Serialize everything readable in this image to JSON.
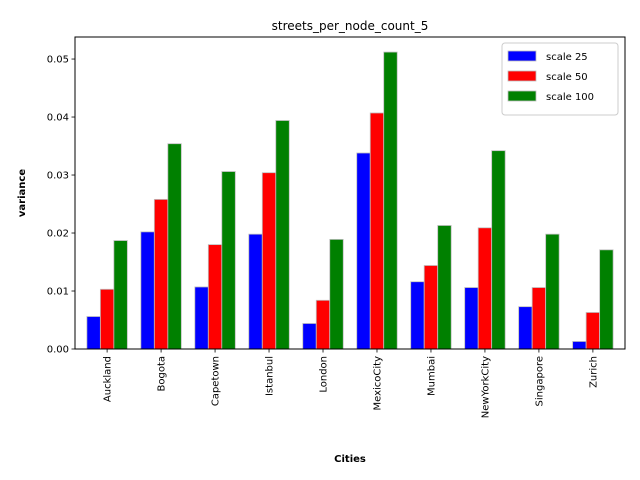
{
  "chart_data": {
    "type": "bar",
    "title": "streets_per_node_count_5",
    "xlabel": "Cities",
    "ylabel": "variance",
    "categories": [
      "Auckland",
      "Bogota",
      "Capetown",
      "Istanbul",
      "London",
      "MexicoCity",
      "Mumbai",
      "NewYorkCity",
      "Singapore",
      "Zurich"
    ],
    "series": [
      {
        "name": "scale 25",
        "color": "#0000ff",
        "values": [
          0.0056,
          0.0202,
          0.0107,
          0.0198,
          0.0044,
          0.0338,
          0.0116,
          0.0106,
          0.0073,
          0.0013
        ]
      },
      {
        "name": "scale 50",
        "color": "#ff0000",
        "values": [
          0.0103,
          0.0258,
          0.018,
          0.0304,
          0.0084,
          0.0407,
          0.0144,
          0.0209,
          0.0106,
          0.0063
        ]
      },
      {
        "name": "scale 100",
        "color": "#008000",
        "values": [
          0.0187,
          0.0354,
          0.0306,
          0.0394,
          0.0189,
          0.0512,
          0.0213,
          0.0342,
          0.0198,
          0.0171
        ]
      }
    ],
    "ylim": [
      0,
      0.0538
    ],
    "yticks": [
      "0.00",
      "0.01",
      "0.02",
      "0.03",
      "0.04",
      "0.05"
    ],
    "grid": false,
    "legend_position": "top-right"
  }
}
